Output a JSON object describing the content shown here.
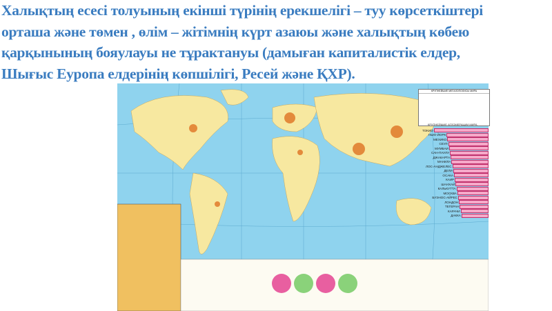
{
  "slide": {
    "title_lines": [
      "Халықтың есесі толуының екінші түрінің ерекшелігі – туу көрсеткіштері",
      "орташа және төмен , өлім – жітімнің күрт азаюы және халықтың көбею",
      "қарқынының бояулауы не тұрактануы (дамыған капиталистік елдер,",
      "Шығыс Еуропа елдерінің көпшілігі, Ресей және ҚХР)."
    ],
    "title_color": "#3a7cc0"
  },
  "map": {
    "ocean_color": "#8fd3ee",
    "land_color": "#f7e8a0",
    "dense_color": "#e07a2a",
    "megacities_title": "КРУПНЕЙШИЕ МЕГАЛОПОЛИСЫ МИРА",
    "ranking_title": "КРУПНЕЙШИЕ АГЛОМЕРАЦИИ МИРА",
    "ranking": [
      "ТОКИО",
      "НЬЮ-ЙОРК",
      "МЕХИКО",
      "СЕУЛ",
      "МУМБАИ",
      "САН-ПАУЛУ",
      "ДЖАКАРТА",
      "МАНИЛА",
      "ЛОС-АНДЖЕЛЕС",
      "ДЕЛИ",
      "ОСАКА",
      "КАИР",
      "ШАНХАЙ",
      "КАЛЬКУТТА",
      "МОСКВА",
      "БУЭНОС-АЙРЕС",
      "ЛОНДОН",
      "ТЕГЕРАН",
      "КАРАЧИ",
      "ДАККА"
    ]
  }
}
